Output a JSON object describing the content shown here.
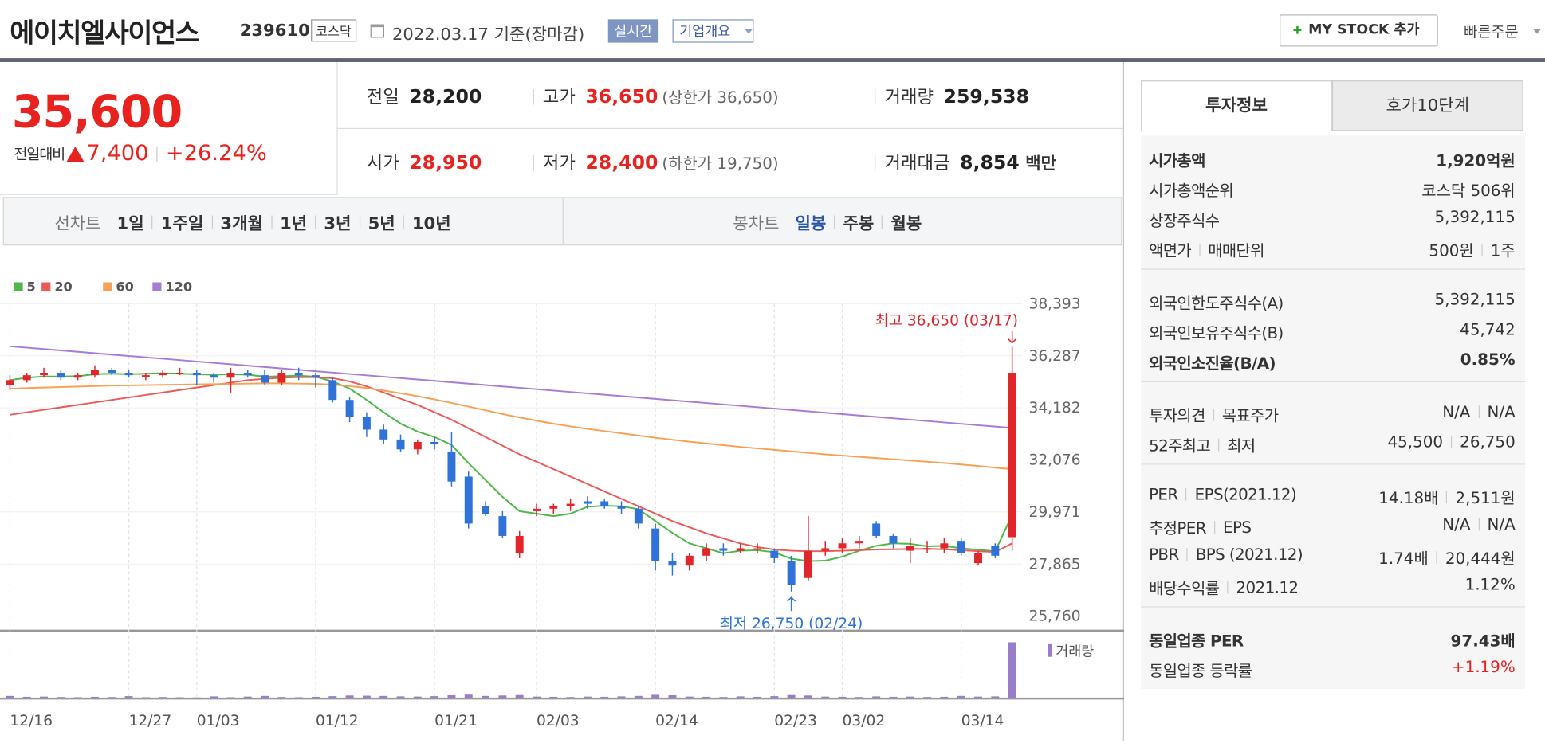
{
  "header": {
    "name": "에이치엘사이언스",
    "code": "239610",
    "market": "코스닥",
    "date": "2022.03.17 기준(장마감)",
    "realtime": "실시간",
    "overview": "기업개요",
    "mystock": "MY STOCK 추가",
    "quick_order": "빠른주문"
  },
  "price": {
    "current": "35,600",
    "change_label": "전일대비",
    "change": "7,400",
    "change_rate": "+26.24%"
  },
  "quotes": [
    {
      "label": "전일",
      "value": "28,200"
    },
    {
      "label": "고가",
      "value": "36,650",
      "note": "(상한가 36,650)",
      "highlight": true
    },
    {
      "label": "거래량",
      "value": "259,538"
    },
    {
      "label": "시가",
      "value": "28,950",
      "highlight": true
    },
    {
      "label": "저가",
      "value": "28,400",
      "note": "(하한가 19,750)",
      "highlight": true
    },
    {
      "label": "거래대금",
      "value": "8,854",
      "unit": "백만"
    }
  ],
  "chart_tabs": {
    "line_label": "선차트",
    "line": [
      "1일",
      "1주일",
      "3개월",
      "1년",
      "3년",
      "5년",
      "10년"
    ],
    "candle_label": "봉차트",
    "candle": [
      "일봉",
      "주봉",
      "월봉"
    ],
    "active_candle": 0
  },
  "invest": {
    "tabs": [
      "투자정보",
      "호가10단계"
    ],
    "sections": [
      [
        {
          "labels": [
            "시가총액"
          ],
          "values": [
            "1,920억원"
          ],
          "bold": true
        },
        {
          "labels": [
            "시가총액순위"
          ],
          "values": [
            "코스닥 506위"
          ]
        },
        {
          "labels": [
            "상장주식수"
          ],
          "values": [
            "5,392,115"
          ]
        },
        {
          "labels": [
            "액면가",
            "매매단위"
          ],
          "values": [
            "500원",
            "1주"
          ]
        }
      ],
      [
        {
          "labels": [
            "외국인한도주식수(A)"
          ],
          "values": [
            "5,392,115"
          ]
        },
        {
          "labels": [
            "외국인보유주식수(B)"
          ],
          "values": [
            "45,742"
          ]
        },
        {
          "labels": [
            "외국인소진율(B/A)"
          ],
          "values": [
            "0.85%"
          ],
          "bold": true
        }
      ],
      [
        {
          "labels": [
            "투자의견",
            "목표주가"
          ],
          "values": [
            "N/A",
            "N/A"
          ]
        },
        {
          "labels": [
            "52주최고",
            "최저"
          ],
          "values": [
            "45,500",
            "26,750"
          ]
        }
      ],
      [
        {
          "labels": [
            "PER",
            "EPS(2021.12)"
          ],
          "values": [
            "14.18배",
            "2,511원"
          ]
        },
        {
          "labels": [
            "추정PER",
            "EPS"
          ],
          "values": [
            "N/A",
            "N/A"
          ]
        },
        {
          "labels": [
            "PBR",
            "BPS (2021.12)"
          ],
          "values": [
            "1.74배",
            "20,444원"
          ]
        },
        {
          "labels": [
            "배당수익률",
            "2021.12"
          ],
          "values": [
            "1.12%"
          ]
        }
      ],
      [
        {
          "labels": [
            "동일업종 PER"
          ],
          "values": [
            "97.43배"
          ],
          "bold": true
        },
        {
          "labels": [
            "동일업종 등락률"
          ],
          "values": [
            "+1.19%"
          ],
          "red": true
        }
      ]
    ]
  },
  "chart_data": {
    "type": "candlestick",
    "categories": [
      "12/16",
      null,
      null,
      null,
      null,
      null,
      null,
      "12/27",
      null,
      null,
      null,
      "01/03",
      null,
      null,
      null,
      null,
      null,
      null,
      "01/12",
      null,
      null,
      null,
      null,
      null,
      null,
      "01/21",
      null,
      null,
      null,
      null,
      null,
      "02/03",
      null,
      null,
      null,
      null,
      null,
      null,
      "02/14",
      null,
      null,
      null,
      null,
      null,
      null,
      "02/23",
      null,
      null,
      null,
      "03/02",
      null,
      null,
      null,
      null,
      null,
      null,
      "03/14",
      null,
      null,
      null
    ],
    "open": [
      35100,
      35300,
      35500,
      35600,
      35400,
      35500,
      35700,
      35600,
      35500,
      35500,
      35600,
      35600,
      35500,
      35400,
      35600,
      35500,
      35200,
      35600,
      35500,
      35300,
      34500,
      33800,
      33300,
      32900,
      32500,
      32800,
      32400,
      31400,
      30200,
      29800,
      28300,
      30000,
      30100,
      30200,
      30400,
      30400,
      30200,
      30100,
      29300,
      28000,
      27800,
      28200,
      28500,
      28400,
      28500,
      28400,
      28000,
      27300,
      28400,
      28500,
      28700,
      29500,
      29000,
      28400,
      28500,
      28500,
      28800,
      27900,
      28600,
      28950
    ],
    "high": [
      35500,
      35600,
      35800,
      35700,
      35600,
      35900,
      35800,
      35700,
      35600,
      35700,
      35800,
      35700,
      35600,
      35800,
      35700,
      35700,
      35700,
      35800,
      35600,
      35400,
      34600,
      34000,
      33500,
      33100,
      32900,
      33000,
      33200,
      31600,
      30400,
      30000,
      29200,
      30300,
      30300,
      30500,
      30600,
      30500,
      30400,
      30200,
      29500,
      28300,
      28300,
      28700,
      28700,
      28700,
      28700,
      28500,
      28200,
      29800,
      28800,
      28900,
      29000,
      29600,
      29100,
      28900,
      28800,
      28900,
      28900,
      28400,
      28700,
      36650
    ],
    "low": [
      34900,
      35200,
      35400,
      35300,
      35300,
      35400,
      35500,
      35400,
      35300,
      35400,
      35500,
      35100,
      35200,
      34800,
      35400,
      35100,
      35100,
      35300,
      35000,
      34400,
      33600,
      33000,
      32700,
      32400,
      32300,
      32500,
      31000,
      29300,
      29800,
      28900,
      28100,
      29800,
      29900,
      30000,
      30100,
      30100,
      29900,
      29300,
      27600,
      27400,
      27600,
      28000,
      28200,
      28300,
      28300,
      27900,
      26750,
      27200,
      28200,
      28300,
      28500,
      28900,
      28500,
      27900,
      28300,
      28300,
      28200,
      27800,
      28100,
      28400
    ],
    "close": [
      35300,
      35500,
      35600,
      35400,
      35500,
      35700,
      35600,
      35500,
      35500,
      35600,
      35600,
      35500,
      35400,
      35600,
      35500,
      35200,
      35600,
      35500,
      35400,
      34500,
      33800,
      33300,
      32900,
      32500,
      32800,
      32700,
      31200,
      29500,
      29900,
      29000,
      29000,
      30100,
      30200,
      30300,
      30300,
      30200,
      30100,
      29500,
      28000,
      27800,
      28200,
      28500,
      28400,
      28500,
      28500,
      28100,
      27000,
      28400,
      28500,
      28700,
      28800,
      29000,
      28700,
      28600,
      28500,
      28700,
      28300,
      28300,
      28200,
      35600
    ],
    "up_color": "#e0262b",
    "down_color": "#2f73d9",
    "series": [
      {
        "name": "5",
        "color": "#4cb848",
        "values": [
          35300,
          35400,
          35450,
          35450,
          35460,
          35540,
          35560,
          35540,
          35560,
          35580,
          35560,
          35540,
          35520,
          35540,
          35520,
          35440,
          35460,
          35480,
          35440,
          35240,
          34960,
          34500,
          34000,
          33540,
          33220,
          33000,
          32680,
          31940,
          31260,
          30580,
          30000,
          29900,
          29800,
          29900,
          30180,
          30220,
          30200,
          30080,
          29600,
          29120,
          28700,
          28500,
          28300,
          28400,
          28420,
          28340,
          28080,
          27980,
          28000,
          28160,
          28400,
          28600,
          28700,
          28680,
          28580,
          28600,
          28500,
          28440,
          28380,
          29850
        ]
      },
      {
        "name": "20",
        "color": "#ec5a55",
        "values": [
          33900,
          34000,
          34100,
          34200,
          34300,
          34400,
          34500,
          34600,
          34700,
          34800,
          34900,
          35000,
          35100,
          35200,
          35300,
          35350,
          35400,
          35420,
          35420,
          35380,
          35250,
          35050,
          34800,
          34550,
          34300,
          34000,
          33700,
          33350,
          33000,
          32650,
          32300,
          32000,
          31700,
          31400,
          31100,
          30800,
          30500,
          30200,
          29900,
          29600,
          29350,
          29100,
          28900,
          28700,
          28550,
          28450,
          28400,
          28380,
          28380,
          28400,
          28420,
          28450,
          28460,
          28470,
          28480,
          28460,
          28420,
          28380,
          28350,
          28700
        ]
      },
      {
        "name": "60",
        "color": "#f7a155",
        "values": [
          34950,
          34980,
          35000,
          35020,
          35040,
          35060,
          35080,
          35090,
          35100,
          35110,
          35120,
          35130,
          35140,
          35150,
          35160,
          35170,
          35170,
          35160,
          35150,
          35120,
          35060,
          34980,
          34880,
          34770,
          34650,
          34520,
          34380,
          34230,
          34080,
          33930,
          33790,
          33660,
          33540,
          33430,
          33330,
          33240,
          33150,
          33060,
          32970,
          32890,
          32810,
          32740,
          32670,
          32600,
          32540,
          32480,
          32420,
          32360,
          32300,
          32250,
          32200,
          32150,
          32100,
          32050,
          32000,
          31950,
          31890,
          31830,
          31760,
          31700
        ]
      },
      {
        "name": "120",
        "color": "#a77bd6",
        "values": [
          36670,
          36614,
          36558,
          36502,
          36446,
          36390,
          36334,
          36278,
          36222,
          36166,
          36110,
          36054,
          35998,
          35942,
          35886,
          35830,
          35774,
          35718,
          35662,
          35606,
          35550,
          35494,
          35438,
          35382,
          35326,
          35270,
          35214,
          35158,
          35102,
          35046,
          34990,
          34934,
          34878,
          34822,
          34766,
          34710,
          34654,
          34598,
          34542,
          34486,
          34430,
          34374,
          34318,
          34262,
          34206,
          34150,
          34094,
          34038,
          33982,
          33926,
          33870,
          33814,
          33758,
          33702,
          33646,
          33590,
          33534,
          33478,
          33422,
          33366
        ]
      }
    ],
    "volume": {
      "name": "거래량",
      "color": "#9a7dc9",
      "values": [
        12000,
        8000,
        9000,
        7000,
        6000,
        8000,
        7000,
        11000,
        6000,
        7000,
        6000,
        5000,
        10000,
        6000,
        9000,
        12000,
        7000,
        6000,
        8000,
        11000,
        14000,
        13000,
        12000,
        10000,
        9000,
        11000,
        15000,
        18000,
        12000,
        14000,
        16000,
        9000,
        8000,
        7000,
        9000,
        8000,
        10000,
        12000,
        17000,
        15000,
        9000,
        8000,
        7000,
        10000,
        8000,
        11000,
        16000,
        14000,
        9000,
        8000,
        7000,
        10000,
        8000,
        9000,
        7000,
        8000,
        12000,
        9000,
        10000,
        259538
      ]
    },
    "ylim": [
      25760,
      38393
    ],
    "yticks": [
      {
        "value": 25760,
        "label": "25,760"
      },
      {
        "value": 27865,
        "label": "27,865"
      },
      {
        "value": 29971,
        "label": "29,971"
      },
      {
        "value": 32076,
        "label": "32,076"
      },
      {
        "value": 34182,
        "label": "34,182"
      },
      {
        "value": 36287,
        "label": "36,287"
      },
      {
        "value": 38393,
        "label": "38,393"
      }
    ],
    "grid": true,
    "annotations": [
      {
        "text": "최고 36,650 (03/17)",
        "index": 59,
        "kind": "high"
      },
      {
        "text": "최저 26,750 (02/24)",
        "index": 46,
        "kind": "low"
      }
    ]
  }
}
